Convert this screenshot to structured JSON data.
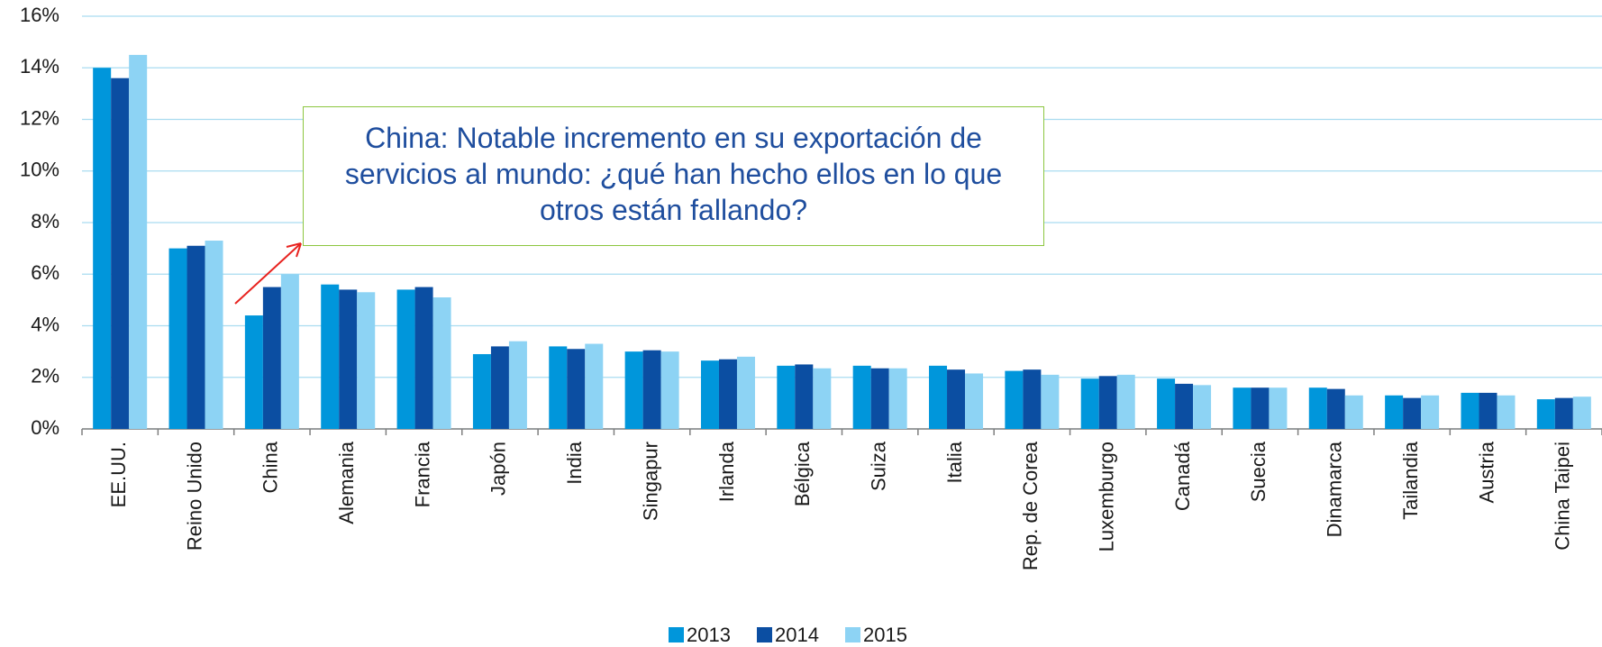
{
  "chart_data": {
    "type": "bar",
    "annotation": "China: Notable incremento en su exportación de servicios al mundo: ¿qué han hecho ellos en lo que otros están fallando?",
    "categories": [
      "EE.UU.",
      "Reino Unido",
      "China",
      "Alemania",
      "Francia",
      "Japón",
      "India",
      "Singapur",
      "Irlanda",
      "Bélgica",
      "Suiza",
      "Italia",
      "Rep. de Corea",
      "Luxemburgo",
      "Canadá",
      "Suecia",
      "Dinamarca",
      "Tailandia",
      "Austria",
      "China Taipei"
    ],
    "series": [
      {
        "name": "2013",
        "color": "#0096db",
        "values": [
          14.0,
          7.0,
          4.4,
          5.6,
          5.4,
          2.9,
          3.2,
          3.0,
          2.65,
          2.45,
          2.45,
          2.45,
          2.25,
          1.95,
          1.95,
          1.6,
          1.6,
          1.3,
          1.4,
          1.15
        ]
      },
      {
        "name": "2014",
        "color": "#0b4ea2",
        "values": [
          13.6,
          7.1,
          5.5,
          5.4,
          5.5,
          3.2,
          3.1,
          3.05,
          2.7,
          2.5,
          2.35,
          2.3,
          2.3,
          2.05,
          1.75,
          1.6,
          1.55,
          1.2,
          1.4,
          1.2
        ]
      },
      {
        "name": "2015",
        "color": "#8dd3f4",
        "values": [
          14.5,
          7.3,
          6.0,
          5.3,
          5.1,
          3.4,
          3.3,
          3.0,
          2.8,
          2.35,
          2.35,
          2.15,
          2.1,
          2.1,
          1.7,
          1.6,
          1.3,
          1.3,
          1.3,
          1.25
        ]
      }
    ],
    "ylim": [
      0,
      16
    ],
    "yticks": [
      {
        "value": 0,
        "label": "0%"
      },
      {
        "value": 2,
        "label": "2%"
      },
      {
        "value": 4,
        "label": "4%"
      },
      {
        "value": 6,
        "label": "6%"
      },
      {
        "value": 8,
        "label": "8%"
      },
      {
        "value": 10,
        "label": "10%"
      },
      {
        "value": 12,
        "label": "12%"
      },
      {
        "value": 14,
        "label": "14%"
      },
      {
        "value": 16,
        "label": "16%"
      }
    ],
    "grid": true,
    "legend": "bottom"
  }
}
